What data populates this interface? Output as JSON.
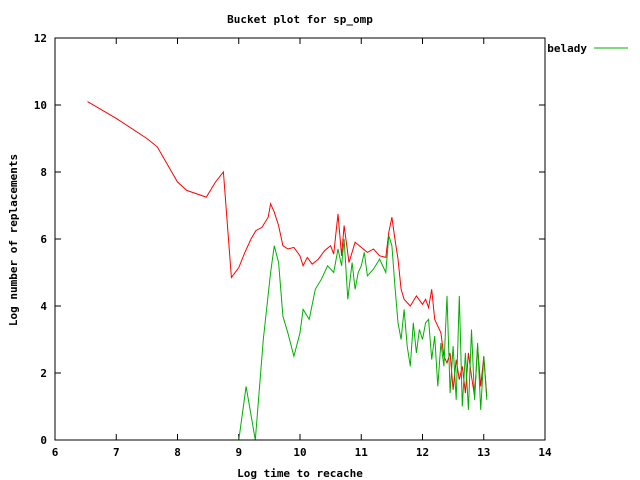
{
  "chart_data": {
    "type": "line",
    "title": "Bucket plot for sp_omp",
    "xlabel": "Log time to recache",
    "ylabel": "Log number of replacements",
    "xlim": [
      6,
      14
    ],
    "ylim": [
      0,
      12
    ],
    "xticks": [
      "6",
      "7",
      "8",
      "9",
      "10",
      "11",
      "12",
      "13",
      "14"
    ],
    "yticks": [
      "0",
      "2",
      "4",
      "6",
      "8",
      "10",
      "12"
    ],
    "grid": false,
    "legend_position": "top-right",
    "series": [
      {
        "name": "",
        "color": "#ff0000",
        "x": [
          6.53,
          7.0,
          7.5,
          7.67,
          8.0,
          8.15,
          8.47,
          8.62,
          8.75,
          8.88,
          9.0,
          9.1,
          9.2,
          9.28,
          9.38,
          9.48,
          9.52,
          9.58,
          9.65,
          9.72,
          9.8,
          9.9,
          10.0,
          10.05,
          10.12,
          10.2,
          10.3,
          10.4,
          10.5,
          10.55,
          10.62,
          10.68,
          10.72,
          10.8,
          10.9,
          11.0,
          11.1,
          11.2,
          11.3,
          11.4,
          11.45,
          11.5,
          11.55,
          11.6,
          11.65,
          11.7,
          11.8,
          11.9,
          12.0,
          12.05,
          12.1,
          12.15,
          12.2,
          12.25,
          12.3,
          12.35,
          12.4,
          12.45,
          12.5,
          12.55,
          12.6,
          12.65,
          12.7,
          12.75,
          12.8,
          12.85,
          12.9,
          12.95,
          13.0,
          13.05
        ],
        "y": [
          10.1,
          9.6,
          9.0,
          8.75,
          7.7,
          7.45,
          7.25,
          7.7,
          8.0,
          4.85,
          5.15,
          5.6,
          6.0,
          6.25,
          6.35,
          6.65,
          7.05,
          6.8,
          6.4,
          5.8,
          5.7,
          5.75,
          5.5,
          5.2,
          5.45,
          5.25,
          5.4,
          5.65,
          5.8,
          5.55,
          6.75,
          5.5,
          6.4,
          5.3,
          5.9,
          5.75,
          5.6,
          5.7,
          5.5,
          5.45,
          6.2,
          6.65,
          6.0,
          5.4,
          4.5,
          4.2,
          4.0,
          4.3,
          4.05,
          4.2,
          3.95,
          4.5,
          3.6,
          3.4,
          3.2,
          2.5,
          2.3,
          2.6,
          1.5,
          2.4,
          1.8,
          2.2,
          1.4,
          2.6,
          1.9,
          1.3,
          2.8,
          1.6,
          2.5,
          1.3
        ]
      },
      {
        "name": "belady",
        "color": "#00b000",
        "x": [
          9.0,
          9.12,
          9.27,
          9.4,
          9.52,
          9.58,
          9.65,
          9.72,
          9.8,
          9.9,
          10.0,
          10.05,
          10.15,
          10.25,
          10.35,
          10.45,
          10.55,
          10.62,
          10.68,
          10.72,
          10.78,
          10.85,
          10.9,
          10.95,
          11.0,
          11.05,
          11.1,
          11.2,
          11.3,
          11.4,
          11.45,
          11.5,
          11.55,
          11.6,
          11.65,
          11.7,
          11.75,
          11.8,
          11.85,
          11.9,
          11.95,
          12.0,
          12.05,
          12.1,
          12.15,
          12.2,
          12.25,
          12.3,
          12.35,
          12.4,
          12.45,
          12.5,
          12.55,
          12.6,
          12.65,
          12.7,
          12.75,
          12.8,
          12.85,
          12.9,
          12.95,
          13.0,
          13.05
        ],
        "y": [
          0.0,
          1.6,
          0.0,
          3.0,
          5.0,
          5.8,
          5.3,
          3.7,
          3.2,
          2.5,
          3.2,
          3.9,
          3.6,
          4.5,
          4.8,
          5.2,
          5.0,
          5.7,
          5.2,
          6.0,
          4.2,
          5.3,
          4.5,
          5.0,
          5.2,
          5.6,
          4.9,
          5.1,
          5.4,
          5.0,
          6.1,
          5.8,
          4.6,
          3.5,
          3.0,
          3.9,
          2.8,
          2.2,
          3.5,
          2.6,
          3.3,
          3.0,
          3.5,
          3.6,
          2.4,
          3.1,
          1.6,
          2.9,
          2.2,
          4.3,
          1.4,
          2.8,
          1.2,
          4.3,
          1.0,
          2.6,
          0.9,
          3.3,
          1.2,
          2.9,
          0.9,
          2.5,
          1.2
        ]
      }
    ]
  }
}
